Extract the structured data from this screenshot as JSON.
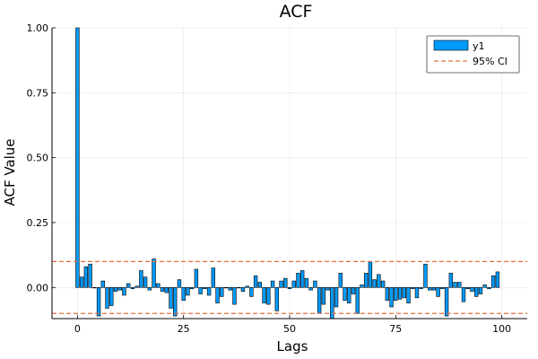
{
  "chart_data": {
    "type": "bar",
    "title": "ACF",
    "xlabel": "Lags",
    "ylabel": "ACF Value",
    "xlim": [
      -6,
      106
    ],
    "ylim": [
      -0.12,
      1.0
    ],
    "xticks": [
      0,
      25,
      50,
      75,
      100
    ],
    "yticks": [
      0.0,
      0.25,
      0.5,
      0.75,
      1.0
    ],
    "xtick_labels": [
      "0",
      "25",
      "50",
      "75",
      "100"
    ],
    "ytick_labels": [
      "0.00",
      "0.25",
      "0.50",
      "0.75",
      "1.00"
    ],
    "grid": true,
    "legend_position": "top-right",
    "series": [
      {
        "name": "y1",
        "kind": "bar",
        "color": "#009AFA",
        "x": [
          0,
          1,
          2,
          3,
          4,
          5,
          6,
          7,
          8,
          9,
          10,
          11,
          12,
          13,
          14,
          15,
          16,
          17,
          18,
          19,
          20,
          21,
          22,
          23,
          24,
          25,
          26,
          27,
          28,
          29,
          30,
          31,
          32,
          33,
          34,
          35,
          36,
          37,
          38,
          39,
          40,
          41,
          42,
          43,
          44,
          45,
          46,
          47,
          48,
          49,
          50,
          51,
          52,
          53,
          54,
          55,
          56,
          57,
          58,
          59,
          60,
          61,
          62,
          63,
          64,
          65,
          66,
          67,
          68,
          69,
          70,
          71,
          72,
          73,
          74,
          75,
          76,
          77,
          78,
          79,
          80,
          81,
          82,
          83,
          84,
          85,
          86,
          87,
          88,
          89,
          90,
          91,
          92,
          93,
          94,
          95,
          96,
          97,
          98,
          99
        ],
        "values": [
          1.0,
          0.04,
          0.08,
          0.09,
          0.0,
          -0.11,
          0.025,
          -0.08,
          -0.07,
          -0.015,
          -0.01,
          -0.03,
          0.015,
          -0.005,
          0.005,
          0.065,
          0.04,
          -0.01,
          0.11,
          0.015,
          -0.015,
          -0.02,
          -0.08,
          -0.11,
          0.03,
          -0.05,
          -0.03,
          -0.005,
          0.07,
          -0.025,
          -0.005,
          -0.03,
          0.075,
          -0.06,
          -0.035,
          0.0,
          -0.01,
          -0.065,
          0.0,
          -0.015,
          0.005,
          -0.035,
          0.045,
          0.02,
          -0.06,
          -0.065,
          0.025,
          -0.09,
          0.025,
          0.035,
          -0.005,
          0.025,
          0.055,
          0.065,
          0.035,
          -0.01,
          0.025,
          -0.1,
          -0.065,
          -0.01,
          -0.12,
          -0.075,
          0.055,
          -0.05,
          -0.06,
          -0.025,
          -0.1,
          0.01,
          0.055,
          0.1,
          0.03,
          0.05,
          0.025,
          -0.05,
          -0.075,
          -0.05,
          -0.045,
          -0.04,
          -0.06,
          -0.005,
          -0.04,
          -0.005,
          0.09,
          -0.01,
          -0.01,
          -0.035,
          -0.005,
          -0.11,
          0.055,
          0.02,
          0.02,
          -0.055,
          -0.005,
          -0.015,
          -0.035,
          -0.025,
          0.01,
          -0.005,
          0.045,
          0.06
        ]
      },
      {
        "name": "95% CI",
        "kind": "hline-dashed",
        "color": "#E26F46",
        "values": [
          0.1,
          -0.1
        ]
      }
    ]
  }
}
